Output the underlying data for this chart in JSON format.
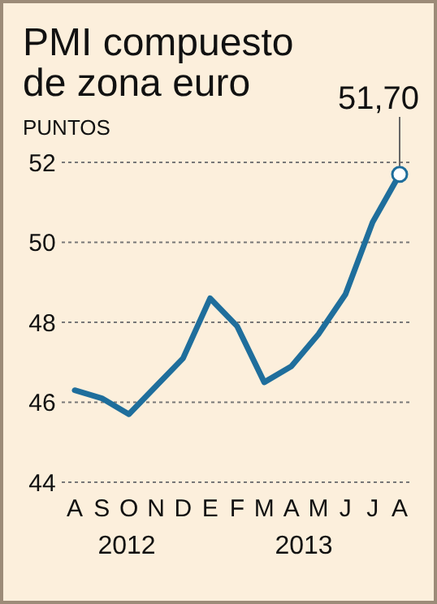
{
  "chart_data": {
    "type": "line",
    "title": "PMI compuesto de zona euro",
    "ylabel": "PUNTOS",
    "categories": [
      "A",
      "S",
      "O",
      "N",
      "D",
      "E",
      "F",
      "M",
      "A",
      "M",
      "J",
      "J",
      "A"
    ],
    "series": [
      {
        "color": "#1f6e9c",
        "values": [
          46.3,
          46.1,
          45.7,
          46.4,
          47.1,
          48.6,
          47.9,
          46.5,
          46.9,
          47.7,
          48.7,
          50.5,
          51.7
        ],
        "value_labels": [
          null,
          null,
          null,
          null,
          null,
          null,
          null,
          null,
          null,
          null,
          null,
          null,
          "51,70"
        ]
      }
    ],
    "ylim": [
      44,
      52
    ],
    "yticks": [
      44,
      46,
      48,
      50,
      52
    ],
    "grid": "y",
    "line_style": "solid",
    "annotations": [
      "2012",
      "2013"
    ]
  }
}
